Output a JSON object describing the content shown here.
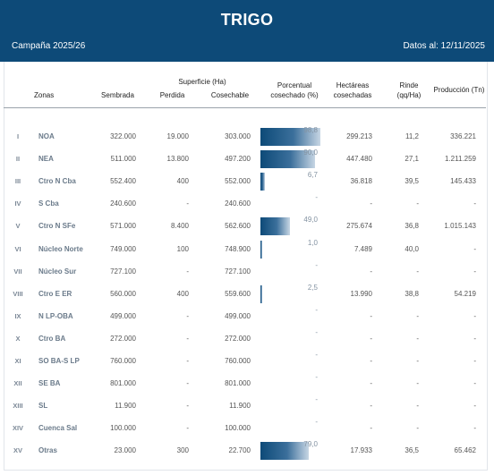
{
  "header": {
    "title": "TRIGO",
    "campaign": "Campaña 2025/26",
    "fecha": "Datos al: 12/11/2025"
  },
  "columns": {
    "zonas": "Zonas",
    "superficie": "Superficie (Ha)",
    "sembrada": "Sembrada",
    "perdida": "Perdida",
    "cosechable": "Cosechable",
    "porcentual_1": "Porcentual",
    "porcentual_2": "cosechado (%)",
    "hectareas_1": "Hectáreas",
    "hectareas_2": "cosechadas",
    "rinde_1": "Rinde",
    "rinde_2": "(qq/Ha)",
    "produccion": "Producción (Tn)"
  },
  "colors": {
    "header_bg": "#0d4a78",
    "bar": "#0d4a78"
  },
  "rows": [
    {
      "num": "I",
      "zona": "NOA",
      "sembrada": "322.000",
      "perdida": "19.000",
      "cosechable": "303.000",
      "pct": "98,8",
      "pct_value": 98.8,
      "hectareas": "299.213",
      "rinde": "11,2",
      "produccion": "336.221"
    },
    {
      "num": "II",
      "zona": "NEA",
      "sembrada": "511.000",
      "perdida": "13.800",
      "cosechable": "497.200",
      "pct": "90,0",
      "pct_value": 90.0,
      "hectareas": "447.480",
      "rinde": "27,1",
      "produccion": "1.211.259"
    },
    {
      "num": "III",
      "zona": "Ctro N Cba",
      "sembrada": "552.400",
      "perdida": "400",
      "cosechable": "552.000",
      "pct": "6,7",
      "pct_value": 6.7,
      "hectareas": "36.818",
      "rinde": "39,5",
      "produccion": "145.433"
    },
    {
      "num": "IV",
      "zona": "S Cba",
      "sembrada": "240.600",
      "perdida": "-",
      "cosechable": "240.600",
      "pct": "-",
      "pct_value": 0,
      "hectareas": "-",
      "rinde": "-",
      "produccion": "-"
    },
    {
      "num": "V",
      "zona": "Ctro N SFe",
      "sembrada": "571.000",
      "perdida": "8.400",
      "cosechable": "562.600",
      "pct": "49,0",
      "pct_value": 49.0,
      "hectareas": "275.674",
      "rinde": "36,8",
      "produccion": "1.015.143"
    },
    {
      "num": "VI",
      "zona": "Núcleo Norte",
      "sembrada": "749.000",
      "perdida": "100",
      "cosechable": "748.900",
      "pct": "1,0",
      "pct_value": 1.0,
      "hectareas": "7.489",
      "rinde": "40,0",
      "produccion": "-"
    },
    {
      "num": "VII",
      "zona": "Núcleo Sur",
      "sembrada": "727.100",
      "perdida": "-",
      "cosechable": "727.100",
      "pct": "-",
      "pct_value": 0,
      "hectareas": "-",
      "rinde": "-",
      "produccion": "-"
    },
    {
      "num": "VIII",
      "zona": "Ctro E ER",
      "sembrada": "560.000",
      "perdida": "400",
      "cosechable": "559.600",
      "pct": "2,5",
      "pct_value": 2.5,
      "hectareas": "13.990",
      "rinde": "38,8",
      "produccion": "54.219"
    },
    {
      "num": "IX",
      "zona": "N LP-OBA",
      "sembrada": "499.000",
      "perdida": "-",
      "cosechable": "499.000",
      "pct": "-",
      "pct_value": 0,
      "hectareas": "-",
      "rinde": "-",
      "produccion": "-"
    },
    {
      "num": "X",
      "zona": "Ctro BA",
      "sembrada": "272.000",
      "perdida": "-",
      "cosechable": "272.000",
      "pct": "-",
      "pct_value": 0,
      "hectareas": "-",
      "rinde": "-",
      "produccion": "-"
    },
    {
      "num": "XI",
      "zona": "SO BA-S LP",
      "sembrada": "760.000",
      "perdida": "-",
      "cosechable": "760.000",
      "pct": "-",
      "pct_value": 0,
      "hectareas": "-",
      "rinde": "-",
      "produccion": "-"
    },
    {
      "num": "XII",
      "zona": "SE BA",
      "sembrada": "801.000",
      "perdida": "-",
      "cosechable": "801.000",
      "pct": "-",
      "pct_value": 0,
      "hectareas": "-",
      "rinde": "-",
      "produccion": "-"
    },
    {
      "num": "XIII",
      "zona": "SL",
      "sembrada": "11.900",
      "perdida": "-",
      "cosechable": "11.900",
      "pct": "-",
      "pct_value": 0,
      "hectareas": "-",
      "rinde": "-",
      "produccion": "-"
    },
    {
      "num": "XIV",
      "zona": "Cuenca Sal",
      "sembrada": "100.000",
      "perdida": "-",
      "cosechable": "100.000",
      "pct": "-",
      "pct_value": 0,
      "hectareas": "-",
      "rinde": "-",
      "produccion": "-"
    },
    {
      "num": "XV",
      "zona": "Otras",
      "sembrada": "23.000",
      "perdida": "300",
      "cosechable": "22.700",
      "pct": "79,0",
      "pct_value": 79.0,
      "hectareas": "17.933",
      "rinde": "36,5",
      "produccion": "65.462"
    }
  ]
}
